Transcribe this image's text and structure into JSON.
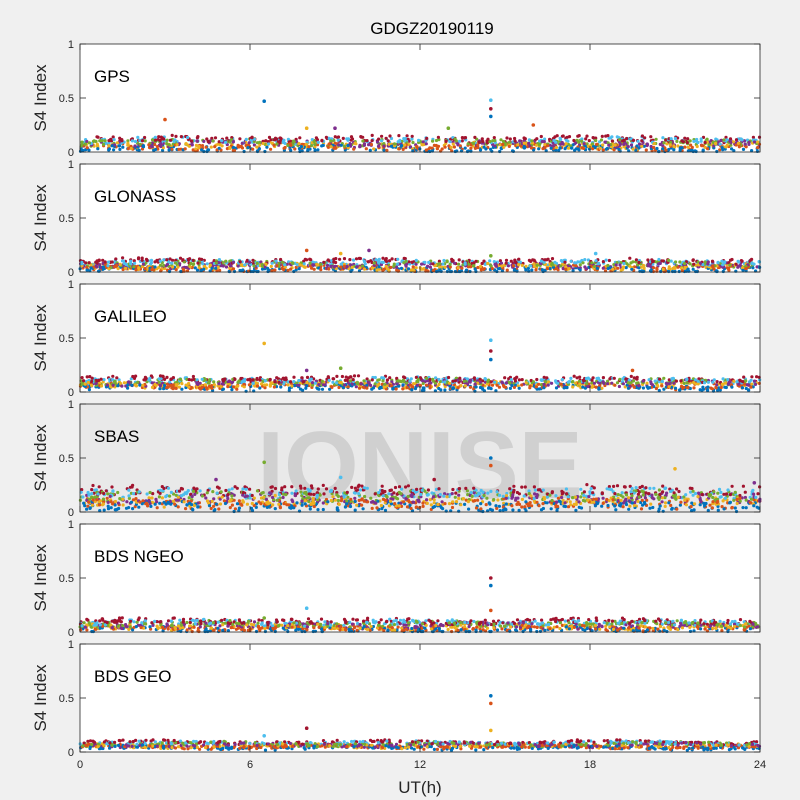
{
  "chart_data": {
    "type": "scatter",
    "title": "GDGZ20190119",
    "xlabel": "UT(h)",
    "ylabel": "S4 Index",
    "xlim": [
      0,
      24
    ],
    "ylim": [
      0,
      1
    ],
    "xticks": [
      0,
      6,
      12,
      18,
      24
    ],
    "yticks": [
      0,
      0.5,
      1
    ],
    "watermark": "IONISE",
    "series_colors": [
      "#0072BD",
      "#D95319",
      "#EDB120",
      "#7E2F8E",
      "#77AC30",
      "#4DBEEE",
      "#A2142F"
    ],
    "panels": [
      {
        "name": "GPS",
        "typical_level": [
          0.03,
          0.12
        ],
        "spikes": [
          {
            "x": 6.5,
            "y": 0.47
          },
          {
            "x": 3.0,
            "y": 0.3
          },
          {
            "x": 8.0,
            "y": 0.22
          },
          {
            "x": 9.0,
            "y": 0.22
          },
          {
            "x": 13.0,
            "y": 0.22
          },
          {
            "x": 14.5,
            "y": 0.48
          },
          {
            "x": 14.5,
            "y": 0.4
          },
          {
            "x": 14.5,
            "y": 0.33
          },
          {
            "x": 16.0,
            "y": 0.25
          }
        ]
      },
      {
        "name": "GLONASS",
        "typical_level": [
          0.02,
          0.1
        ],
        "spikes": [
          {
            "x": 8.0,
            "y": 0.2
          },
          {
            "x": 9.2,
            "y": 0.17
          },
          {
            "x": 10.2,
            "y": 0.2
          },
          {
            "x": 14.5,
            "y": 0.15
          },
          {
            "x": 18.2,
            "y": 0.17
          }
        ]
      },
      {
        "name": "GALILEO",
        "typical_level": [
          0.04,
          0.12
        ],
        "spikes": [
          {
            "x": 6.5,
            "y": 0.45
          },
          {
            "x": 8.0,
            "y": 0.2
          },
          {
            "x": 9.2,
            "y": 0.22
          },
          {
            "x": 14.5,
            "y": 0.48
          },
          {
            "x": 14.5,
            "y": 0.38
          },
          {
            "x": 14.5,
            "y": 0.3
          },
          {
            "x": 19.5,
            "y": 0.2
          }
        ]
      },
      {
        "name": "SBAS",
        "typical_level": [
          0.05,
          0.2
        ],
        "spikes": [
          {
            "x": 4.8,
            "y": 0.3
          },
          {
            "x": 6.5,
            "y": 0.46
          },
          {
            "x": 9.2,
            "y": 0.32
          },
          {
            "x": 12.5,
            "y": 0.3
          },
          {
            "x": 14.5,
            "y": 0.5
          },
          {
            "x": 14.5,
            "y": 0.43
          },
          {
            "x": 21.0,
            "y": 0.4
          },
          {
            "x": 23.8,
            "y": 0.27
          }
        ]
      },
      {
        "name": "BDS NGEO",
        "typical_level": [
          0.02,
          0.1
        ],
        "spikes": [
          {
            "x": 6.5,
            "y": 0.13
          },
          {
            "x": 8.0,
            "y": 0.22
          },
          {
            "x": 14.5,
            "y": 0.5
          },
          {
            "x": 14.5,
            "y": 0.43
          },
          {
            "x": 14.5,
            "y": 0.2
          }
        ]
      },
      {
        "name": "BDS GEO",
        "typical_level": [
          0.04,
          0.09
        ],
        "spikes": [
          {
            "x": 6.5,
            "y": 0.15
          },
          {
            "x": 8.0,
            "y": 0.22
          },
          {
            "x": 14.5,
            "y": 0.52
          },
          {
            "x": 14.5,
            "y": 0.45
          },
          {
            "x": 14.5,
            "y": 0.2
          }
        ]
      }
    ]
  }
}
